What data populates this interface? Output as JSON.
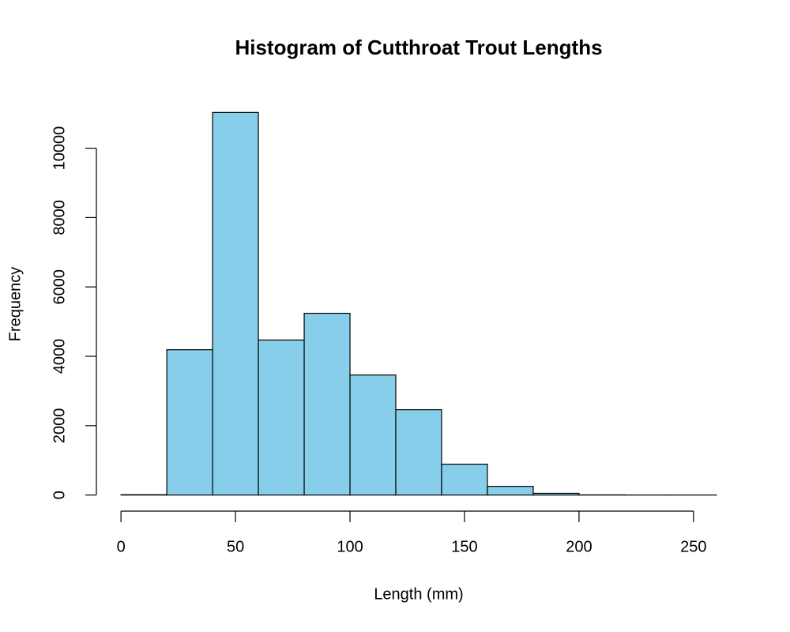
{
  "chart_data": {
    "type": "histogram",
    "title": "Histogram of Cutthroat Trout Lengths",
    "xlabel": "Length (mm)",
    "ylabel": "Frequency",
    "bins": [
      0,
      20,
      40,
      60,
      80,
      100,
      120,
      140,
      160,
      180,
      200,
      220,
      240,
      260
    ],
    "values": [
      10,
      4190,
      11030,
      4470,
      5240,
      3460,
      2460,
      890,
      250,
      50,
      5,
      2,
      1
    ],
    "color": "#87ceeb",
    "xlim": [
      -10.4,
      270.4
    ],
    "ylim": [
      -441,
      11471
    ],
    "xticks": [
      0,
      50,
      100,
      150,
      200,
      250
    ],
    "yticks": [
      0,
      2000,
      4000,
      6000,
      8000,
      10000
    ]
  }
}
